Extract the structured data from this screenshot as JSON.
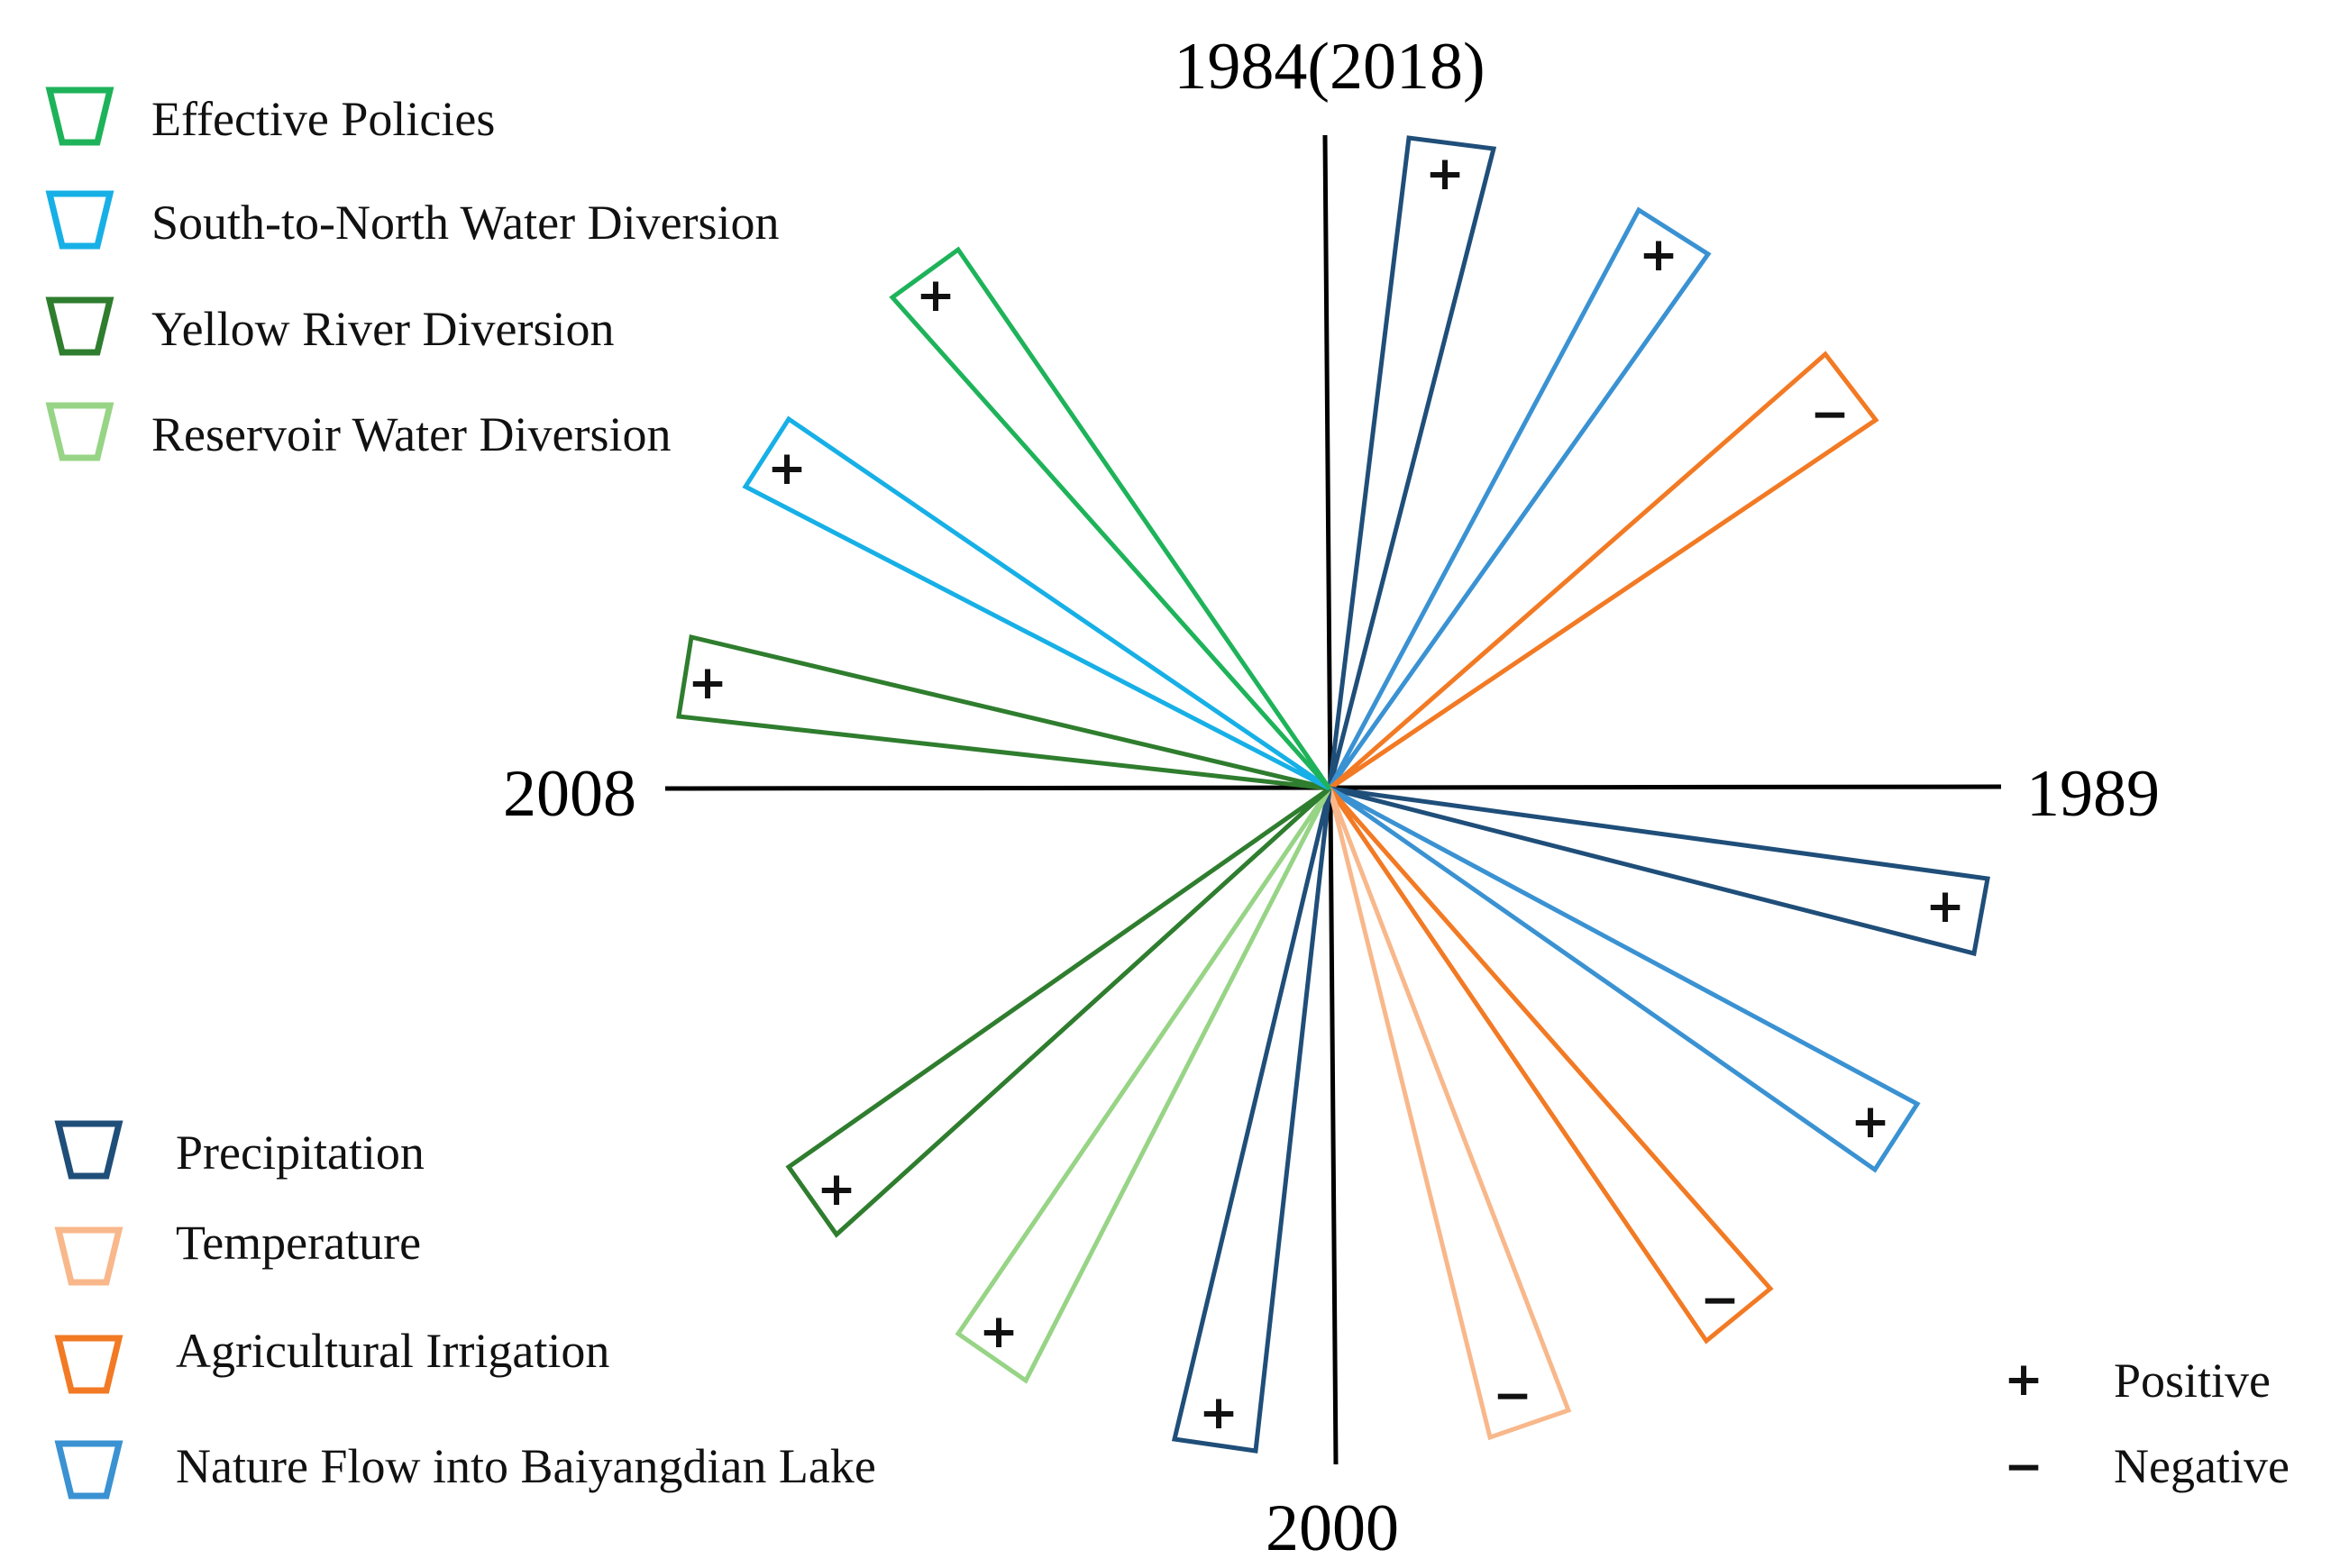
{
  "colors": {
    "effective_policies": "#1eb35a",
    "south_to_north": "#17b0e6",
    "yellow_river": "#2f7d2e",
    "reservoir": "#97d486",
    "precipitation": "#1f4e79",
    "temperature": "#f8b88b",
    "agricultural_irrigation": "#f27a24",
    "nature_flow": "#3a92d2"
  },
  "axes": {
    "top": "1984(2018)",
    "right": "1989",
    "bottom": "2000",
    "left": "2008"
  },
  "legend_top": [
    {
      "label": "Effective Policies",
      "color_key": "effective_policies"
    },
    {
      "label": "South-to-North Water Diversion",
      "color_key": "south_to_north"
    },
    {
      "label": "Yellow River Diversion",
      "color_key": "yellow_river"
    },
    {
      "label": "Reservoir Water Diversion",
      "color_key": "reservoir"
    }
  ],
  "legend_bottom": [
    {
      "label": "Precipitation",
      "color_key": "precipitation"
    },
    {
      "label": "Temperature",
      "color_key": "temperature"
    },
    {
      "label": "Agricultural Irrigation",
      "color_key": "agricultural_irrigation"
    },
    {
      "label": "Nature Flow into Baiyangdian  Lake",
      "color_key": "nature_flow"
    }
  ],
  "sign_legend": [
    {
      "symbol": "+",
      "label": "Positive"
    },
    {
      "symbol": "−",
      "label": "Negative"
    }
  ],
  "wedges": [
    {
      "factor": "precipitation",
      "sign": "+"
    },
    {
      "factor": "nature_flow",
      "sign": "+"
    },
    {
      "factor": "agricultural_irrigation",
      "sign": "−"
    },
    {
      "factor": "precipitation",
      "sign": "+"
    },
    {
      "factor": "nature_flow",
      "sign": "+"
    },
    {
      "factor": "agricultural_irrigation",
      "sign": "−"
    },
    {
      "factor": "temperature",
      "sign": "−"
    },
    {
      "factor": "precipitation",
      "sign": "+"
    },
    {
      "factor": "reservoir",
      "sign": "+"
    },
    {
      "factor": "yellow_river",
      "sign": "+"
    },
    {
      "factor": "yellow_river",
      "sign": "+"
    },
    {
      "factor": "south_to_north",
      "sign": "+"
    },
    {
      "factor": "effective_policies",
      "sign": "+"
    }
  ]
}
